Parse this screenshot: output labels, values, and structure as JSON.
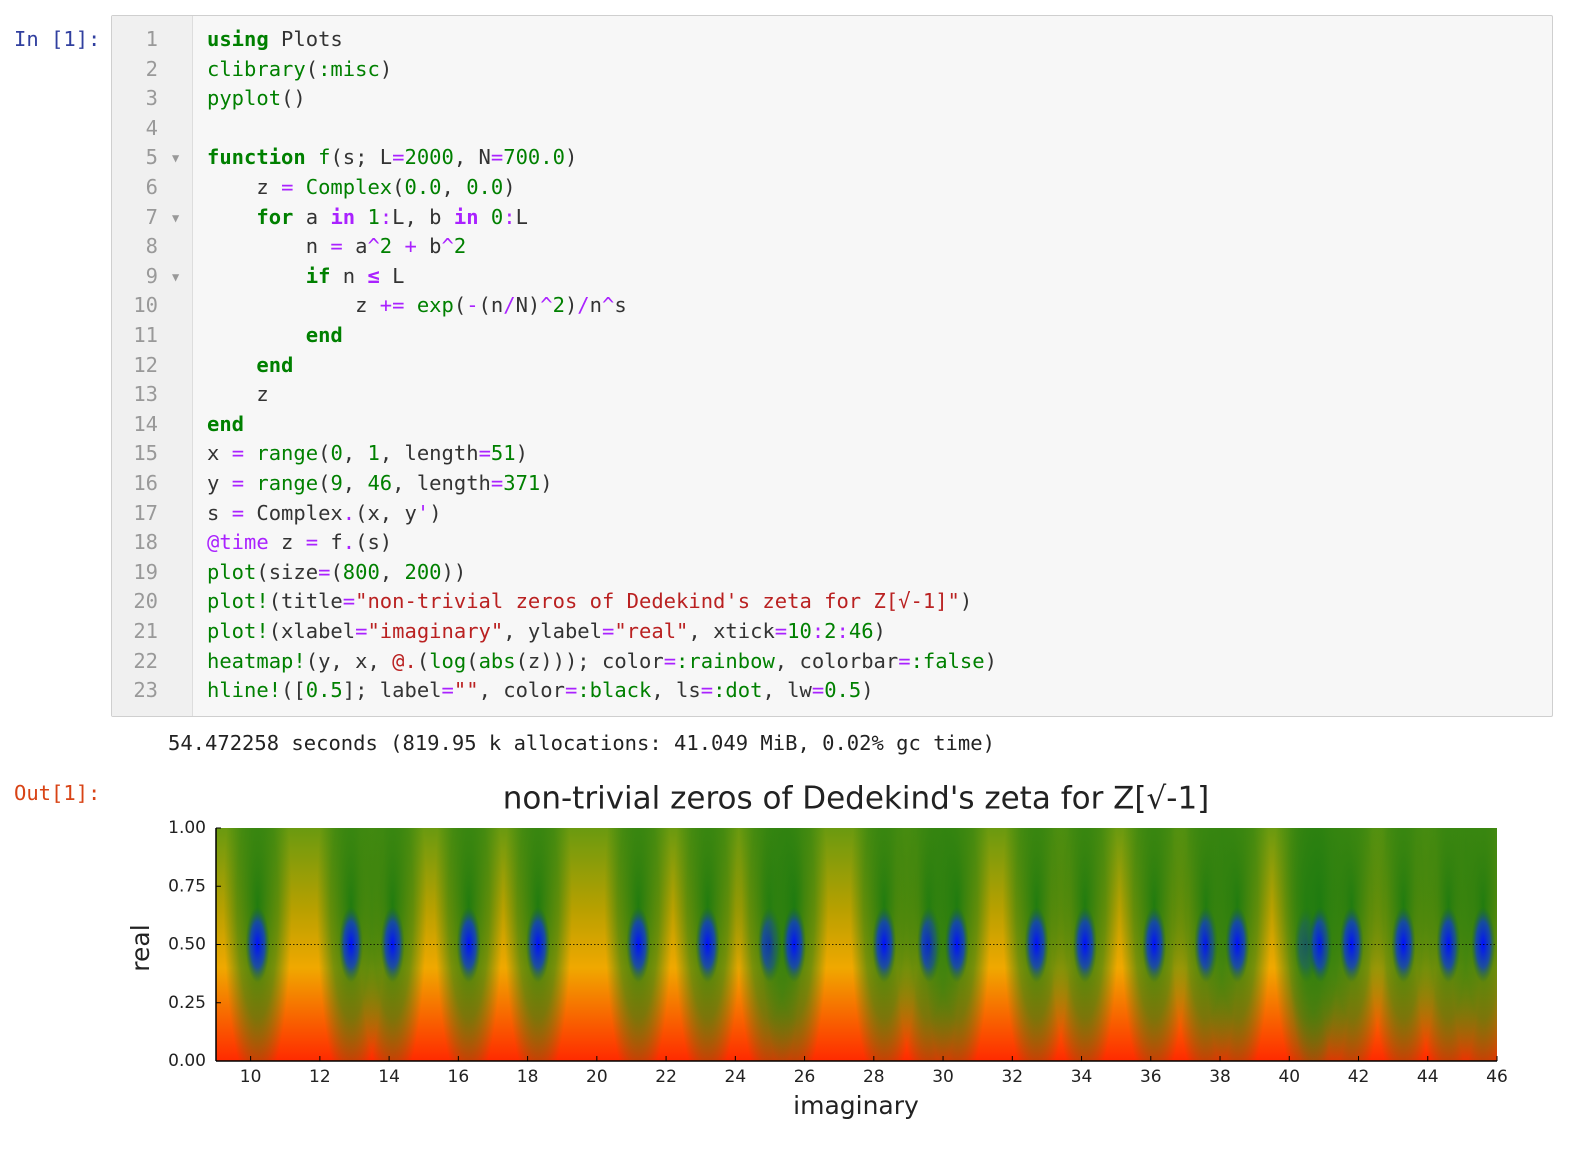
{
  "cell": {
    "input_prompt": "In [1]:",
    "output_prompt": "Out[1]:",
    "lines": [
      {
        "number": 1,
        "tokens": [
          {
            "text": "using",
            "style": "keyword"
          },
          {
            "text": " Plots",
            "style": "plain"
          }
        ]
      },
      {
        "number": 2,
        "tokens": [
          {
            "text": "clibrary",
            "style": "builtin"
          },
          {
            "text": "(",
            "style": "plain"
          },
          {
            "text": ":misc",
            "style": "number"
          },
          {
            "text": ")",
            "style": "plain"
          }
        ]
      },
      {
        "number": 3,
        "tokens": [
          {
            "text": "pyplot",
            "style": "builtin"
          },
          {
            "text": "()",
            "style": "plain"
          }
        ]
      },
      {
        "number": 4,
        "tokens": []
      },
      {
        "number": 5,
        "fold": true,
        "tokens": [
          {
            "text": "function",
            "style": "keyword"
          },
          {
            "text": " ",
            "style": "plain"
          },
          {
            "text": "f",
            "style": "builtin"
          },
          {
            "text": "(s; L",
            "style": "plain"
          },
          {
            "text": "=",
            "style": "operator"
          },
          {
            "text": "2000",
            "style": "number"
          },
          {
            "text": ", N",
            "style": "plain"
          },
          {
            "text": "=",
            "style": "operator"
          },
          {
            "text": "700.0",
            "style": "number"
          },
          {
            "text": ")",
            "style": "plain"
          }
        ]
      },
      {
        "number": 6,
        "tokens": [
          {
            "text": "    z ",
            "style": "plain"
          },
          {
            "text": "=",
            "style": "operator"
          },
          {
            "text": " ",
            "style": "plain"
          },
          {
            "text": "Complex",
            "style": "builtin"
          },
          {
            "text": "(",
            "style": "plain"
          },
          {
            "text": "0.0",
            "style": "number"
          },
          {
            "text": ", ",
            "style": "plain"
          },
          {
            "text": "0.0",
            "style": "number"
          },
          {
            "text": ")",
            "style": "plain"
          }
        ]
      },
      {
        "number": 7,
        "fold": true,
        "tokens": [
          {
            "text": "    ",
            "style": "plain"
          },
          {
            "text": "for",
            "style": "keyword"
          },
          {
            "text": " a ",
            "style": "plain"
          },
          {
            "text": "in",
            "style": "opword"
          },
          {
            "text": " ",
            "style": "plain"
          },
          {
            "text": "1",
            "style": "number"
          },
          {
            "text": ":",
            "style": "operator"
          },
          {
            "text": "L, b ",
            "style": "plain"
          },
          {
            "text": "in",
            "style": "opword"
          },
          {
            "text": " ",
            "style": "plain"
          },
          {
            "text": "0",
            "style": "number"
          },
          {
            "text": ":",
            "style": "operator"
          },
          {
            "text": "L",
            "style": "plain"
          }
        ]
      },
      {
        "number": 8,
        "tokens": [
          {
            "text": "        n ",
            "style": "plain"
          },
          {
            "text": "=",
            "style": "operator"
          },
          {
            "text": " a",
            "style": "plain"
          },
          {
            "text": "^",
            "style": "operator"
          },
          {
            "text": "2",
            "style": "number"
          },
          {
            "text": " ",
            "style": "plain"
          },
          {
            "text": "+",
            "style": "operator"
          },
          {
            "text": " b",
            "style": "plain"
          },
          {
            "text": "^",
            "style": "operator"
          },
          {
            "text": "2",
            "style": "number"
          }
        ]
      },
      {
        "number": 9,
        "fold": true,
        "tokens": [
          {
            "text": "        ",
            "style": "plain"
          },
          {
            "text": "if",
            "style": "keyword"
          },
          {
            "text": " n ",
            "style": "plain"
          },
          {
            "text": "≤",
            "style": "opword"
          },
          {
            "text": " L",
            "style": "plain"
          }
        ]
      },
      {
        "number": 10,
        "tokens": [
          {
            "text": "            z ",
            "style": "plain"
          },
          {
            "text": "+=",
            "style": "operator"
          },
          {
            "text": " ",
            "style": "plain"
          },
          {
            "text": "exp",
            "style": "builtin"
          },
          {
            "text": "(",
            "style": "plain"
          },
          {
            "text": "-",
            "style": "operator"
          },
          {
            "text": "(n",
            "style": "plain"
          },
          {
            "text": "/",
            "style": "operator"
          },
          {
            "text": "N)",
            "style": "plain"
          },
          {
            "text": "^",
            "style": "operator"
          },
          {
            "text": "2",
            "style": "number"
          },
          {
            "text": ")",
            "style": "plain"
          },
          {
            "text": "/",
            "style": "operator"
          },
          {
            "text": "n",
            "style": "plain"
          },
          {
            "text": "^",
            "style": "operator"
          },
          {
            "text": "s",
            "style": "plain"
          }
        ]
      },
      {
        "number": 11,
        "tokens": [
          {
            "text": "        ",
            "style": "plain"
          },
          {
            "text": "end",
            "style": "keyword"
          }
        ]
      },
      {
        "number": 12,
        "tokens": [
          {
            "text": "    ",
            "style": "plain"
          },
          {
            "text": "end",
            "style": "keyword"
          }
        ]
      },
      {
        "number": 13,
        "tokens": [
          {
            "text": "    z",
            "style": "plain"
          }
        ]
      },
      {
        "number": 14,
        "tokens": [
          {
            "text": "end",
            "style": "keyword"
          }
        ]
      },
      {
        "number": 15,
        "tokens": [
          {
            "text": "x ",
            "style": "plain"
          },
          {
            "text": "=",
            "style": "operator"
          },
          {
            "text": " ",
            "style": "plain"
          },
          {
            "text": "range",
            "style": "builtin"
          },
          {
            "text": "(",
            "style": "plain"
          },
          {
            "text": "0",
            "style": "number"
          },
          {
            "text": ", ",
            "style": "plain"
          },
          {
            "text": "1",
            "style": "number"
          },
          {
            "text": ", length",
            "style": "plain"
          },
          {
            "text": "=",
            "style": "operator"
          },
          {
            "text": "51",
            "style": "number"
          },
          {
            "text": ")",
            "style": "plain"
          }
        ]
      },
      {
        "number": 16,
        "tokens": [
          {
            "text": "y ",
            "style": "plain"
          },
          {
            "text": "=",
            "style": "operator"
          },
          {
            "text": " ",
            "style": "plain"
          },
          {
            "text": "range",
            "style": "builtin"
          },
          {
            "text": "(",
            "style": "plain"
          },
          {
            "text": "9",
            "style": "number"
          },
          {
            "text": ", ",
            "style": "plain"
          },
          {
            "text": "46",
            "style": "number"
          },
          {
            "text": ", length",
            "style": "plain"
          },
          {
            "text": "=",
            "style": "operator"
          },
          {
            "text": "371",
            "style": "number"
          },
          {
            "text": ")",
            "style": "plain"
          }
        ]
      },
      {
        "number": 17,
        "tokens": [
          {
            "text": "s ",
            "style": "plain"
          },
          {
            "text": "=",
            "style": "operator"
          },
          {
            "text": " Complex",
            "style": "plain"
          },
          {
            "text": ".",
            "style": "operator"
          },
          {
            "text": "(x, y",
            "style": "plain"
          },
          {
            "text": "'",
            "style": "operator"
          },
          {
            "text": ")",
            "style": "plain"
          }
        ]
      },
      {
        "number": 18,
        "tokens": [
          {
            "text": "@time",
            "style": "macro"
          },
          {
            "text": " z ",
            "style": "plain"
          },
          {
            "text": "=",
            "style": "operator"
          },
          {
            "text": " f",
            "style": "plain"
          },
          {
            "text": ".",
            "style": "operator"
          },
          {
            "text": "(s)",
            "style": "plain"
          }
        ]
      },
      {
        "number": 19,
        "tokens": [
          {
            "text": "plot",
            "style": "builtin"
          },
          {
            "text": "(size",
            "style": "plain"
          },
          {
            "text": "=",
            "style": "operator"
          },
          {
            "text": "(",
            "style": "plain"
          },
          {
            "text": "800",
            "style": "number"
          },
          {
            "text": ", ",
            "style": "plain"
          },
          {
            "text": "200",
            "style": "number"
          },
          {
            "text": "))",
            "style": "plain"
          }
        ]
      },
      {
        "number": 20,
        "tokens": [
          {
            "text": "plot!",
            "style": "builtin"
          },
          {
            "text": "(title",
            "style": "plain"
          },
          {
            "text": "=",
            "style": "operator"
          },
          {
            "text": "\"non-trivial zeros of Dedekind's zeta for Z[√-1]\"",
            "style": "string"
          },
          {
            "text": ")",
            "style": "plain"
          }
        ]
      },
      {
        "number": 21,
        "tokens": [
          {
            "text": "plot!",
            "style": "builtin"
          },
          {
            "text": "(xlabel",
            "style": "plain"
          },
          {
            "text": "=",
            "style": "operator"
          },
          {
            "text": "\"imaginary\"",
            "style": "string"
          },
          {
            "text": ", ylabel",
            "style": "plain"
          },
          {
            "text": "=",
            "style": "operator"
          },
          {
            "text": "\"real\"",
            "style": "string"
          },
          {
            "text": ", xtick",
            "style": "plain"
          },
          {
            "text": "=",
            "style": "operator"
          },
          {
            "text": "10",
            "style": "number"
          },
          {
            "text": ":",
            "style": "operator"
          },
          {
            "text": "2",
            "style": "number"
          },
          {
            "text": ":",
            "style": "operator"
          },
          {
            "text": "46",
            "style": "number"
          },
          {
            "text": ")",
            "style": "plain"
          }
        ]
      },
      {
        "number": 22,
        "tokens": [
          {
            "text": "heatmap!",
            "style": "builtin"
          },
          {
            "text": "(y, x, ",
            "style": "plain"
          },
          {
            "text": "@.",
            "style": "string"
          },
          {
            "text": "(",
            "style": "plain"
          },
          {
            "text": "log",
            "style": "builtin"
          },
          {
            "text": "(",
            "style": "plain"
          },
          {
            "text": "abs",
            "style": "builtin"
          },
          {
            "text": "(z))); color",
            "style": "plain"
          },
          {
            "text": "=",
            "style": "operator"
          },
          {
            "text": ":rainbow",
            "style": "number"
          },
          {
            "text": ", colorbar",
            "style": "plain"
          },
          {
            "text": "=",
            "style": "operator"
          },
          {
            "text": ":false",
            "style": "number"
          },
          {
            "text": ")",
            "style": "plain"
          }
        ]
      },
      {
        "number": 23,
        "tokens": [
          {
            "text": "hline!",
            "style": "builtin"
          },
          {
            "text": "([",
            "style": "plain"
          },
          {
            "text": "0.5",
            "style": "number"
          },
          {
            "text": "]; label",
            "style": "plain"
          },
          {
            "text": "=",
            "style": "operator"
          },
          {
            "text": "\"\"",
            "style": "string"
          },
          {
            "text": ", color",
            "style": "plain"
          },
          {
            "text": "=",
            "style": "operator"
          },
          {
            "text": ":black",
            "style": "number"
          },
          {
            "text": ", ls",
            "style": "plain"
          },
          {
            "text": "=",
            "style": "operator"
          },
          {
            "text": ":dot",
            "style": "number"
          },
          {
            "text": ", lw",
            "style": "plain"
          },
          {
            "text": "=",
            "style": "operator"
          },
          {
            "text": "0.5",
            "style": "number"
          },
          {
            "text": ")",
            "style": "plain"
          }
        ]
      }
    ],
    "stdout": "54.472258 seconds (819.95 k allocations: 41.049 MiB, 0.02% gc time)"
  },
  "chart_data": {
    "type": "heatmap",
    "title": "non-trivial zeros of Dedekind's zeta for Z[√-1]",
    "xlabel": "imaginary",
    "ylabel": "real",
    "colormap": "rainbow",
    "xlim": [
      9,
      46
    ],
    "ylim": [
      0,
      1
    ],
    "xticks": [
      10,
      12,
      14,
      16,
      18,
      20,
      22,
      24,
      26,
      28,
      30,
      32,
      34,
      36,
      38,
      40,
      42,
      44,
      46
    ],
    "yticks": [
      {
        "value": 0,
        "label": "0.00"
      },
      {
        "value": 0.25,
        "label": "0.25"
      },
      {
        "value": 0.5,
        "label": "0.50"
      },
      {
        "value": 0.75,
        "label": "0.75"
      },
      {
        "value": 1,
        "label": "1.00"
      }
    ],
    "x": [
      10.2,
      12.9,
      14.1,
      16.3,
      18.3,
      21.2,
      23.2,
      25.0,
      25.7,
      28.3,
      29.6,
      30.4,
      32.7,
      34.1,
      36.1,
      37.6,
      38.5,
      40.5,
      40.9,
      41.8,
      43.3,
      44.6,
      45.6
    ],
    "y": [
      0.5,
      0.5,
      0.5,
      0.5,
      0.5,
      0.5,
      0.5,
      0.5,
      0.5,
      0.5,
      0.5,
      0.5,
      0.5,
      0.5,
      0.5,
      0.5,
      0.5,
      0.5,
      0.5,
      0.5,
      0.5,
      0.5,
      0.5
    ],
    "hline": 0.5,
    "hline_color": "#000000"
  }
}
